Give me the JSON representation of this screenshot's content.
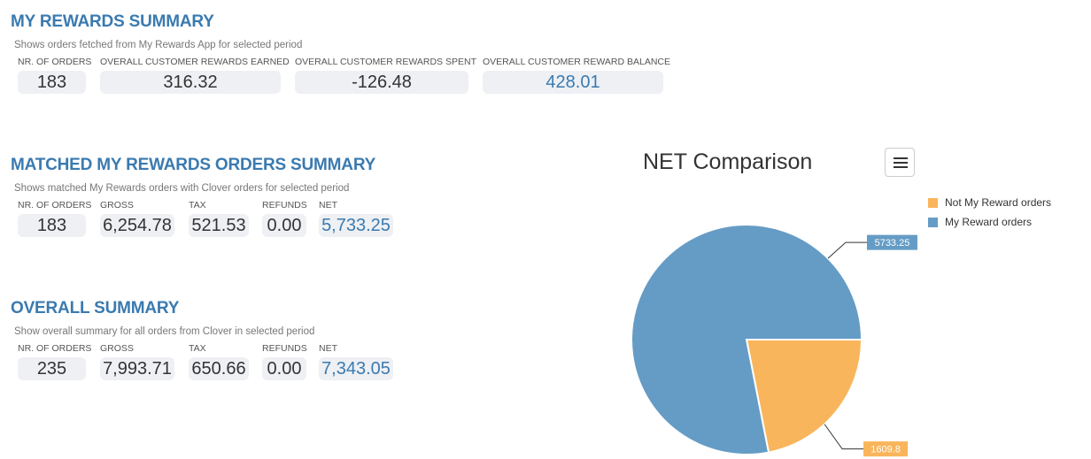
{
  "rewards_summary": {
    "title": "MY REWARDS SUMMARY",
    "description": "Shows orders fetched from My Rewards App for selected period",
    "stats": [
      {
        "label": "NR. OF ORDERS",
        "value": "183"
      },
      {
        "label": "OVERALL CUSTOMER REWARDS EARNED",
        "value": "316.32"
      },
      {
        "label": "OVERALL CUSTOMER REWARDS SPENT",
        "value": "-126.48"
      },
      {
        "label": "OVERALL CUSTOMER REWARD BALANCE",
        "value": "428.01"
      }
    ]
  },
  "matched_summary": {
    "title": "MATCHED MY REWARDS ORDERS SUMMARY",
    "description": "Shows matched My Rewards orders with Clover orders for selected period",
    "stats": [
      {
        "label": "NR. OF ORDERS",
        "value": "183"
      },
      {
        "label": "GROSS",
        "value": "6,254.78"
      },
      {
        "label": "TAX",
        "value": "521.53"
      },
      {
        "label": "REFUNDS",
        "value": "0.00"
      },
      {
        "label": "NET",
        "value": "5,733.25"
      }
    ]
  },
  "overall_summary": {
    "title": "OVERALL SUMMARY",
    "description": "Show overall summary for all orders from Clover in selected period",
    "stats": [
      {
        "label": "NR. OF ORDERS",
        "value": "235"
      },
      {
        "label": "GROSS",
        "value": "7,993.71"
      },
      {
        "label": "TAX",
        "value": "650.66"
      },
      {
        "label": "REFUNDS",
        "value": "0.00"
      },
      {
        "label": "NET",
        "value": "7,343.05"
      }
    ]
  },
  "chart_data": {
    "type": "pie",
    "title": "NET Comparison",
    "legend_position": "top-right",
    "slices": [
      {
        "name": "Not My Reward orders",
        "value": 1609.8,
        "label": "1609.8",
        "color": "#f9b55b"
      },
      {
        "name": "My Reward orders",
        "value": 5733.25,
        "label": "5733.25",
        "color": "#659cc5"
      }
    ]
  }
}
